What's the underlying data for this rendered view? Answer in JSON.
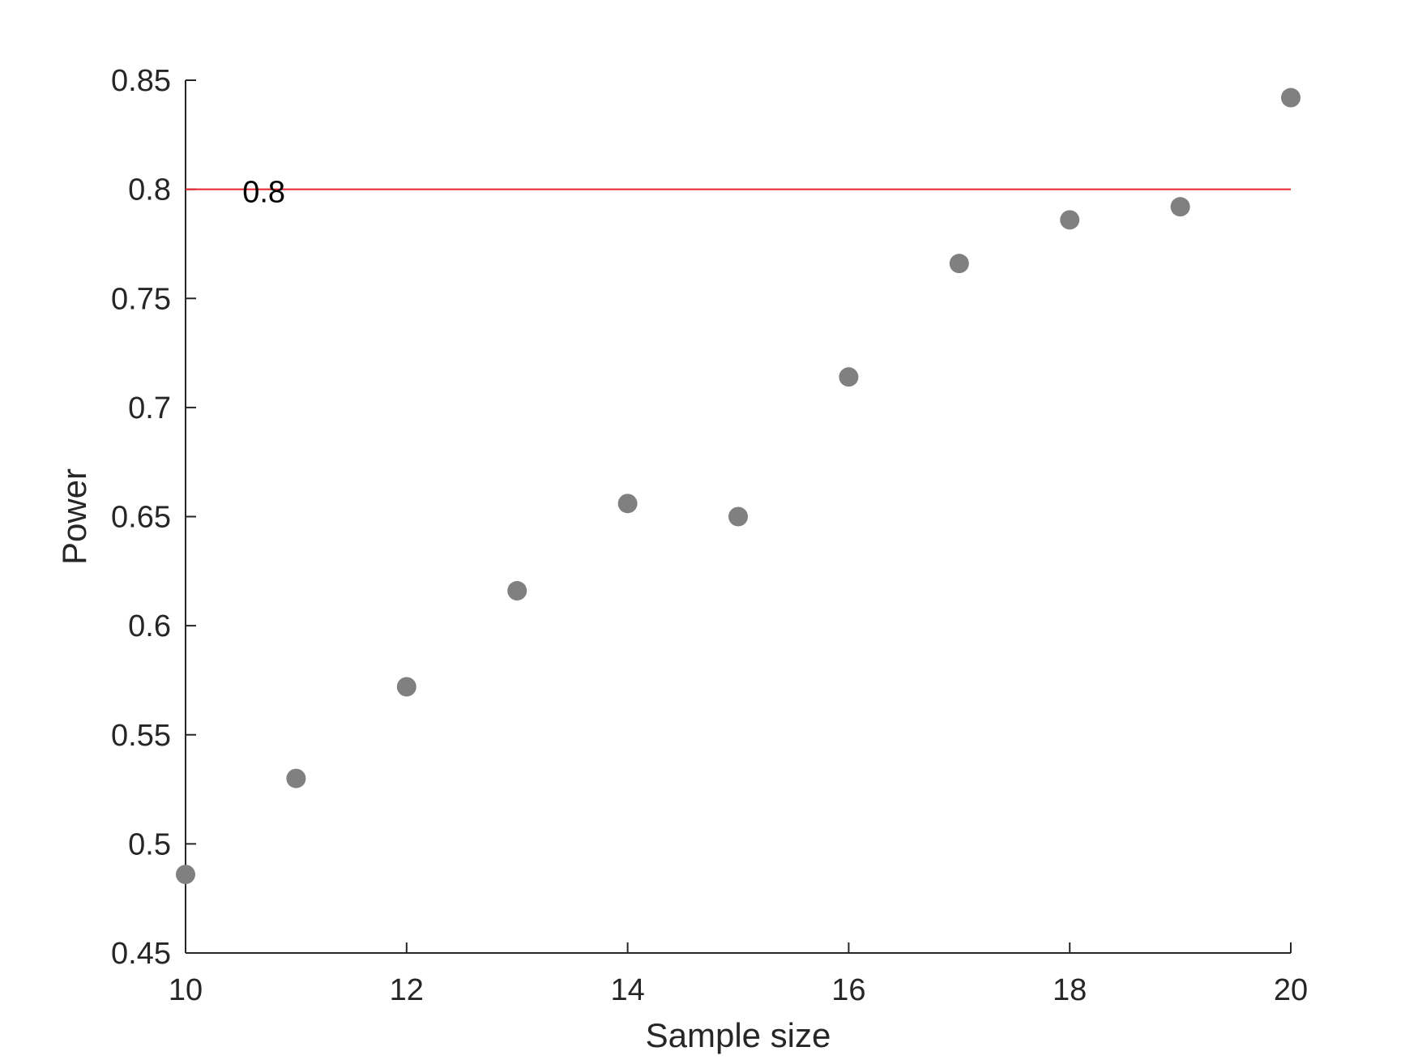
{
  "chart_data": {
    "type": "scatter",
    "title": "",
    "xlabel": "Sample size",
    "ylabel": "Power",
    "xlim": [
      10,
      20
    ],
    "ylim": [
      0.45,
      0.85
    ],
    "xticks": [
      10,
      12,
      14,
      16,
      18,
      20
    ],
    "xtick_labels": [
      "10",
      "12",
      "14",
      "16",
      "18",
      "20"
    ],
    "yticks": [
      0.45,
      0.5,
      0.55,
      0.6,
      0.65,
      0.7,
      0.75,
      0.8,
      0.85
    ],
    "ytick_labels": [
      "0.45",
      "0.5",
      "0.55",
      "0.6",
      "0.65",
      "0.7",
      "0.75",
      "0.8",
      "0.85"
    ],
    "grid": false,
    "series": [
      {
        "x": [
          10,
          11,
          12,
          13,
          14,
          15,
          16,
          17,
          18,
          19,
          20
        ],
        "y": [
          0.486,
          0.53,
          0.572,
          0.616,
          0.656,
          0.65,
          0.714,
          0.766,
          0.786,
          0.792,
          0.842
        ],
        "color": "#808080"
      }
    ],
    "reference_line": {
      "y": 0.8,
      "label": "0.8",
      "label_x": 10.5,
      "color": "#e8202a"
    },
    "axis_color": "#262626"
  }
}
